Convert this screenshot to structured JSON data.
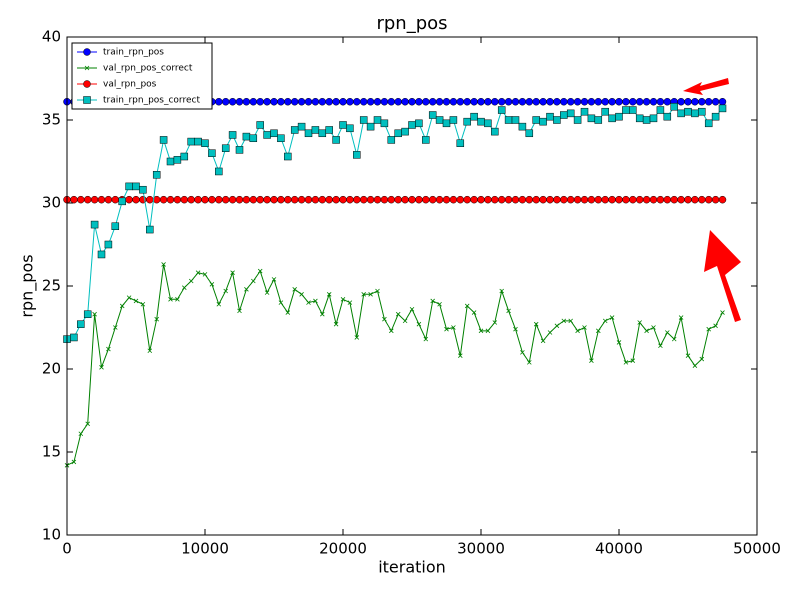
{
  "chart_data": {
    "type": "line",
    "title": "rpn_pos",
    "x_label": "iteration",
    "y_label": "rpn_pos",
    "x": [
      0,
      500,
      1000,
      1500,
      2000,
      2500,
      3000,
      3500,
      4000,
      4500,
      5000,
      5500,
      6000,
      6500,
      7000,
      7500,
      8000,
      8500,
      9000,
      9500,
      10000,
      10500,
      11000,
      11500,
      12000,
      12500,
      13000,
      13500,
      14000,
      14500,
      15000,
      15500,
      16000,
      16500,
      17000,
      17500,
      18000,
      18500,
      19000,
      19500,
      20000,
      20500,
      21000,
      21500,
      22000,
      22500,
      23000,
      23500,
      24000,
      24500,
      25000,
      25500,
      26000,
      26500,
      27000,
      27500,
      28000,
      28500,
      29000,
      29500,
      30000,
      30500,
      31000,
      31500,
      32000,
      32500,
      33000,
      33500,
      34000,
      34500,
      35000,
      35500,
      36000,
      36500,
      37000,
      37500,
      38000,
      38500,
      39000,
      39500,
      40000,
      40500,
      41000,
      41500,
      42000,
      42500,
      43000,
      43500,
      44000,
      44500,
      45000,
      45500,
      46000,
      46500,
      47000,
      47500
    ],
    "series": [
      {
        "name": "train_rpn_pos",
        "color": "#0000ff",
        "marker": "circle",
        "values": [
          36.1,
          36.1,
          36.1,
          36.1,
          36.1,
          36.1,
          36.1,
          36.1,
          36.1,
          36.1,
          36.1,
          36.1,
          36.1,
          36.1,
          36.1,
          36.1,
          36.1,
          36.1,
          36.1,
          36.1,
          36.1,
          36.1,
          36.1,
          36.1,
          36.1,
          36.1,
          36.1,
          36.1,
          36.1,
          36.1,
          36.1,
          36.1,
          36.1,
          36.1,
          36.1,
          36.1,
          36.1,
          36.1,
          36.1,
          36.1,
          36.1,
          36.1,
          36.1,
          36.1,
          36.1,
          36.1,
          36.1,
          36.1,
          36.1,
          36.1,
          36.1,
          36.1,
          36.1,
          36.1,
          36.1,
          36.1,
          36.1,
          36.1,
          36.1,
          36.1,
          36.1,
          36.1,
          36.1,
          36.1,
          36.1,
          36.1,
          36.1,
          36.1,
          36.1,
          36.1,
          36.1,
          36.1,
          36.1,
          36.1,
          36.1,
          36.1,
          36.1,
          36.1,
          36.1,
          36.1,
          36.1,
          36.1,
          36.1,
          36.1,
          36.1,
          36.1,
          36.1,
          36.1,
          36.1,
          36.1,
          36.1,
          36.1,
          36.1,
          36.1,
          36.1,
          36.1
        ]
      },
      {
        "name": "val_rpn_pos_correct",
        "color": "#008000",
        "marker": "x",
        "values": [
          14.2,
          14.4,
          16.1,
          16.7,
          23.3,
          20.1,
          21.2,
          22.5,
          23.8,
          24.3,
          24.1,
          23.9,
          21.1,
          23.0,
          26.3,
          24.2,
          24.2,
          24.9,
          25.3,
          25.8,
          25.7,
          25.1,
          23.9,
          24.7,
          25.8,
          23.5,
          24.8,
          25.3,
          25.9,
          24.6,
          25.4,
          24.0,
          23.4,
          24.8,
          24.5,
          24.0,
          24.1,
          23.3,
          24.5,
          22.7,
          24.2,
          24.0,
          21.9,
          24.5,
          24.5,
          24.7,
          23.0,
          22.3,
          23.3,
          22.9,
          23.6,
          22.7,
          21.8,
          24.1,
          23.9,
          22.4,
          22.5,
          20.8,
          23.8,
          23.4,
          22.3,
          22.3,
          22.8,
          24.7,
          23.5,
          22.4,
          21.0,
          20.4,
          22.7,
          21.7,
          22.2,
          22.6,
          22.9,
          22.9,
          22.3,
          22.5,
          20.5,
          22.3,
          22.9,
          23.1,
          21.6,
          20.4,
          20.5,
          22.8,
          22.3,
          22.5,
          21.4,
          22.2,
          21.8,
          23.1,
          20.8,
          20.2,
          20.6,
          22.4,
          22.6,
          23.4
        ]
      },
      {
        "name": "val_rpn_pos",
        "color": "#ff0000",
        "marker": "circle",
        "values": [
          30.2,
          30.2,
          30.2,
          30.2,
          30.2,
          30.2,
          30.2,
          30.2,
          30.2,
          30.2,
          30.2,
          30.2,
          30.2,
          30.2,
          30.2,
          30.2,
          30.2,
          30.2,
          30.2,
          30.2,
          30.2,
          30.2,
          30.2,
          30.2,
          30.2,
          30.2,
          30.2,
          30.2,
          30.2,
          30.2,
          30.2,
          30.2,
          30.2,
          30.2,
          30.2,
          30.2,
          30.2,
          30.2,
          30.2,
          30.2,
          30.2,
          30.2,
          30.2,
          30.2,
          30.2,
          30.2,
          30.2,
          30.2,
          30.2,
          30.2,
          30.2,
          30.2,
          30.2,
          30.2,
          30.2,
          30.2,
          30.2,
          30.2,
          30.2,
          30.2,
          30.2,
          30.2,
          30.2,
          30.2,
          30.2,
          30.2,
          30.2,
          30.2,
          30.2,
          30.2,
          30.2,
          30.2,
          30.2,
          30.2,
          30.2,
          30.2,
          30.2,
          30.2,
          30.2,
          30.2,
          30.2,
          30.2,
          30.2,
          30.2,
          30.2,
          30.2,
          30.2,
          30.2,
          30.2,
          30.2,
          30.2,
          30.2,
          30.2,
          30.2,
          30.2,
          30.2
        ]
      },
      {
        "name": "train_rpn_pos_correct",
        "color": "#00bfbf",
        "marker": "square",
        "values": [
          21.8,
          21.9,
          22.7,
          23.3,
          28.7,
          26.9,
          27.5,
          28.6,
          30.1,
          31.0,
          31.0,
          30.8,
          28.4,
          31.7,
          33.8,
          32.5,
          32.6,
          32.8,
          33.7,
          33.7,
          33.6,
          33.0,
          31.9,
          33.3,
          34.1,
          33.2,
          34.0,
          33.9,
          34.7,
          34.1,
          34.2,
          33.9,
          32.8,
          34.4,
          34.6,
          34.2,
          34.4,
          34.2,
          34.4,
          33.8,
          34.7,
          34.5,
          32.9,
          35.0,
          34.6,
          35.0,
          34.8,
          33.8,
          34.2,
          34.3,
          34.7,
          34.8,
          33.8,
          35.3,
          35.0,
          34.8,
          35.0,
          33.6,
          34.9,
          35.2,
          34.9,
          34.8,
          34.3,
          35.6,
          35.0,
          35.0,
          34.6,
          34.2,
          35.0,
          34.9,
          35.2,
          35.0,
          35.3,
          35.4,
          35.0,
          35.5,
          35.1,
          35.0,
          35.5,
          35.1,
          35.2,
          35.6,
          35.6,
          35.1,
          35.0,
          35.1,
          35.6,
          35.2,
          35.8,
          35.4,
          35.5,
          35.4,
          35.5,
          34.8,
          35.2,
          35.7
        ]
      }
    ],
    "xlim": [
      0,
      50000
    ],
    "ylim": [
      10,
      40
    ],
    "xticks": [
      0,
      10000,
      20000,
      30000,
      40000,
      50000
    ],
    "yticks": [
      10,
      15,
      20,
      25,
      30,
      35,
      40
    ],
    "legend": "upper left"
  }
}
